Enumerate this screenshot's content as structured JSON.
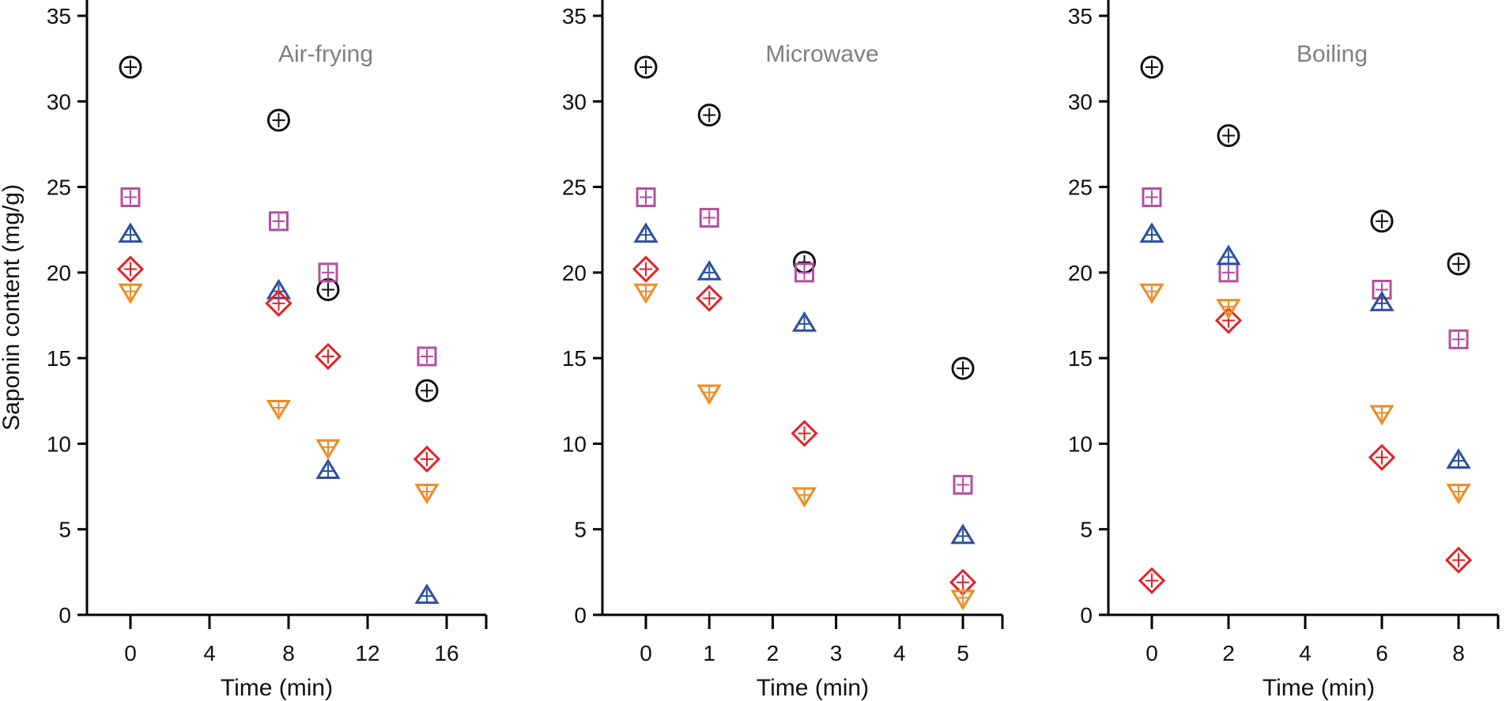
{
  "chart_data": [
    {
      "type": "scatter",
      "title": "Air-frying",
      "xlabel": "Time (min)",
      "ylabel": "Saponin content (mg/g)",
      "x_ticks": [
        0,
        4,
        8,
        12,
        16
      ],
      "x_tick_labels": [
        "0",
        "4",
        "8",
        "12",
        "16"
      ],
      "xlim": [
        -2,
        17
      ],
      "y_ticks": [
        0,
        5,
        10,
        15,
        20,
        25,
        30,
        35
      ],
      "ylim": [
        0,
        35
      ],
      "series": [
        {
          "name": "circle",
          "marker": "circle",
          "color": "#111111",
          "x": [
            0,
            7.5,
            10,
            15
          ],
          "y": [
            32.0,
            28.9,
            19.0,
            13.1
          ]
        },
        {
          "name": "square",
          "marker": "square",
          "color": "#b44ea0",
          "x": [
            0,
            7.5,
            10,
            15
          ],
          "y": [
            24.4,
            23.0,
            20.0,
            15.1
          ]
        },
        {
          "name": "triangle-up",
          "marker": "triangle-up",
          "color": "#2d4fa0",
          "x": [
            0,
            7.5,
            10,
            15
          ],
          "y": [
            22.2,
            18.9,
            8.4,
            1.1
          ]
        },
        {
          "name": "diamond",
          "marker": "diamond",
          "color": "#e52226",
          "x": [
            0,
            7.5,
            10,
            15
          ],
          "y": [
            20.2,
            18.2,
            15.1,
            9.1
          ]
        },
        {
          "name": "triangle-down",
          "marker": "triangle-down",
          "color": "#f08a24",
          "x": [
            0,
            7.5,
            10,
            15
          ],
          "y": [
            18.9,
            12.1,
            9.8,
            7.2
          ]
        }
      ]
    },
    {
      "type": "scatter",
      "title": "Microwave",
      "xlabel": "Time (min)",
      "ylabel": "",
      "x_ticks": [
        0,
        1,
        2,
        3,
        4,
        5
      ],
      "x_tick_labels": [
        "0",
        "1",
        "2",
        "3",
        "4",
        "5"
      ],
      "xlim": [
        -0.5,
        5.5
      ],
      "y_ticks": [
        0,
        5,
        10,
        15,
        20,
        25,
        30,
        35
      ],
      "ylim": [
        0,
        35
      ],
      "series": [
        {
          "name": "circle",
          "marker": "circle",
          "color": "#111111",
          "x": [
            0,
            1,
            2.5,
            5
          ],
          "y": [
            32.0,
            29.2,
            20.6,
            14.4
          ]
        },
        {
          "name": "square",
          "marker": "square",
          "color": "#b44ea0",
          "x": [
            0,
            1,
            2.5,
            5
          ],
          "y": [
            24.4,
            23.2,
            20.0,
            7.6
          ]
        },
        {
          "name": "triangle-up",
          "marker": "triangle-up",
          "color": "#2d4fa0",
          "x": [
            0,
            1,
            2.5,
            5
          ],
          "y": [
            22.2,
            20.0,
            17.0,
            4.6
          ]
        },
        {
          "name": "diamond",
          "marker": "diamond",
          "color": "#e52226",
          "x": [
            0,
            1,
            2.5,
            5
          ],
          "y": [
            20.2,
            18.5,
            10.6,
            1.9
          ]
        },
        {
          "name": "triangle-down",
          "marker": "triangle-down",
          "color": "#f08a24",
          "x": [
            0,
            1,
            2.5,
            5
          ],
          "y": [
            18.9,
            13.0,
            7.0,
            1.0
          ]
        }
      ]
    },
    {
      "type": "scatter",
      "title": "Boiling",
      "xlabel": "Time (min)",
      "ylabel": "",
      "x_ticks": [
        0,
        2,
        4,
        6,
        8
      ],
      "x_tick_labels": [
        "0",
        "2",
        "4",
        "6",
        "8"
      ],
      "xlim": [
        -1,
        9
      ],
      "y_ticks": [
        0,
        5,
        10,
        15,
        20,
        25,
        30,
        35
      ],
      "ylim": [
        0,
        35
      ],
      "series": [
        {
          "name": "circle",
          "marker": "circle",
          "color": "#111111",
          "x": [
            0,
            2,
            6,
            8
          ],
          "y": [
            32.0,
            28.0,
            23.0,
            20.5
          ]
        },
        {
          "name": "square",
          "marker": "square",
          "color": "#b44ea0",
          "x": [
            0,
            2,
            6,
            8
          ],
          "y": [
            24.4,
            20.0,
            19.0,
            16.1
          ]
        },
        {
          "name": "triangle-up",
          "marker": "triangle-up",
          "color": "#2d4fa0",
          "x": [
            0,
            2,
            6,
            8
          ],
          "y": [
            22.2,
            20.9,
            18.2,
            9.0
          ]
        },
        {
          "name": "diamond",
          "marker": "diamond",
          "color": "#e52226",
          "x": [
            0,
            2,
            6,
            8
          ],
          "y": [
            2.0,
            17.2,
            9.2,
            3.2
          ]
        },
        {
          "name": "triangle-down",
          "marker": "triangle-down",
          "color": "#f08a24",
          "x": [
            0,
            2,
            6,
            8
          ],
          "y": [
            18.9,
            18.0,
            11.8,
            7.2
          ]
        }
      ]
    }
  ]
}
